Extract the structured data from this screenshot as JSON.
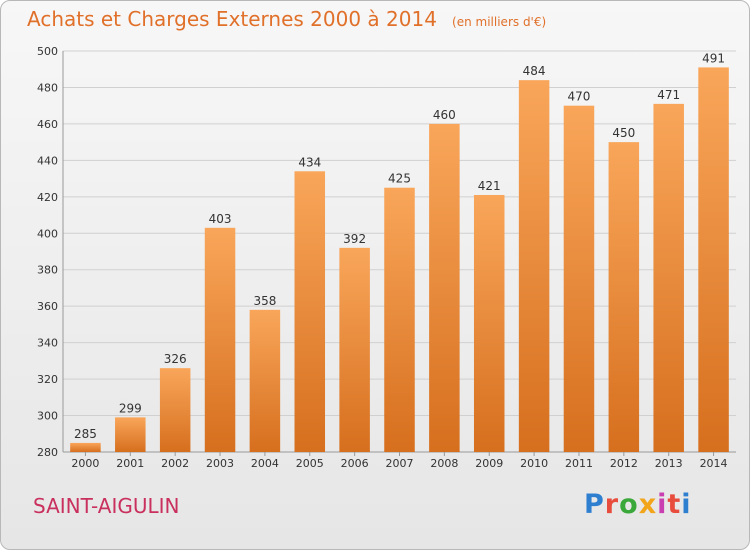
{
  "title": "Achats et Charges Externes 2000 à 2014",
  "unit_note": "(en milliers d'€)",
  "place_name": "SAINT-AIGULIN",
  "logo": {
    "text": "Proxiti",
    "letter_colors": [
      "#2f7fd0",
      "#e84c3d",
      "#3aa83a",
      "#f2a51a",
      "#c93fb1",
      "#e84c3d",
      "#2f7fd0"
    ]
  },
  "colors": {
    "bar_light": "#f9a65a",
    "bar_dark": "#d66f1e",
    "title": "#e0702a",
    "place": "#c9305e",
    "grid": "#d0d0d0"
  },
  "chart_data": {
    "type": "bar",
    "title": "Achats et Charges Externes 2000 à 2014",
    "categories": [
      "2000",
      "2001",
      "2002",
      "2003",
      "2004",
      "2005",
      "2006",
      "2007",
      "2008",
      "2009",
      "2010",
      "2011",
      "2012",
      "2013",
      "2014"
    ],
    "values": [
      285,
      299,
      326,
      403,
      358,
      434,
      392,
      425,
      460,
      421,
      484,
      470,
      450,
      471,
      491
    ],
    "ylim": [
      280,
      500
    ],
    "yticks": [
      280,
      300,
      320,
      340,
      360,
      380,
      400,
      420,
      440,
      460,
      480,
      500
    ],
    "grid": true,
    "xlabel": "",
    "ylabel": ""
  }
}
